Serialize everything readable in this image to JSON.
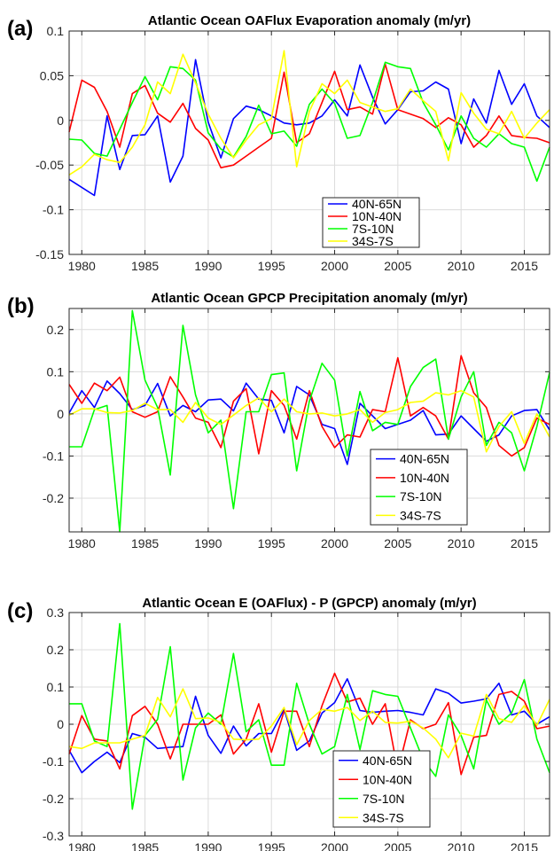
{
  "chart_data": [
    {
      "panel_label": "(a)",
      "type": "line",
      "title": "Atlantic Ocean OAFlux Evaporation anomaly (m/yr)",
      "xlim": [
        1979,
        2017
      ],
      "ylim": [
        -0.15,
        0.1
      ],
      "xticks": [
        1980,
        1985,
        1990,
        1995,
        2000,
        2005,
        2010,
        2015
      ],
      "yticks": [
        -0.15,
        -0.1,
        -0.05,
        0,
        0.05,
        0.1
      ],
      "ytick_labels": [
        "-0.15",
        "-0.1",
        "-0.05",
        "0",
        "0.05",
        "0.1"
      ],
      "grid": true,
      "legend_position": "bottom-center",
      "x": [
        1979,
        1980,
        1981,
        1982,
        1983,
        1984,
        1985,
        1986,
        1987,
        1988,
        1989,
        1990,
        1991,
        1992,
        1993,
        1994,
        1995,
        1996,
        1997,
        1998,
        1999,
        2000,
        2001,
        2002,
        2003,
        2004,
        2005,
        2006,
        2007,
        2008,
        2009,
        2010,
        2011,
        2012,
        2013,
        2014,
        2015,
        2016,
        2017
      ],
      "series": [
        {
          "name": "40N-65N",
          "color": "#0000ff",
          "values": [
            -0.066,
            -0.075,
            -0.084,
            0.005,
            -0.055,
            -0.017,
            -0.016,
            0.005,
            -0.069,
            -0.04,
            0.068,
            -0.002,
            -0.042,
            0.002,
            0.016,
            0.012,
            0.005,
            -0.003,
            -0.005,
            -0.003,
            0.005,
            0.023,
            0.005,
            0.062,
            0.026,
            -0.004,
            0.012,
            0.032,
            0.033,
            0.043,
            0.035,
            -0.026,
            0.024,
            -0.003,
            0.056,
            0.018,
            0.041,
            0.005,
            -0.008
          ]
        },
        {
          "name": "10N-40N",
          "color": "#ff0000",
          "values": [
            -0.013,
            0.045,
            0.037,
            0.01,
            -0.03,
            0.03,
            0.039,
            0.008,
            -0.002,
            0.019,
            -0.009,
            -0.022,
            -0.053,
            -0.05,
            -0.04,
            -0.03,
            -0.02,
            0.054,
            -0.025,
            -0.015,
            0.02,
            0.055,
            0.012,
            0.015,
            0.007,
            0.063,
            0.012,
            0.007,
            0.002,
            -0.008,
            0.003,
            -0.005,
            -0.03,
            -0.017,
            0.005,
            -0.017,
            -0.019,
            -0.02,
            -0.025
          ]
        },
        {
          "name": "7S-10N",
          "color": "#00ff00",
          "values": [
            -0.021,
            -0.022,
            -0.037,
            -0.04,
            -0.01,
            0.02,
            0.049,
            0.023,
            0.06,
            0.058,
            0.045,
            -0.014,
            -0.032,
            -0.041,
            -0.018,
            0.017,
            -0.015,
            -0.012,
            -0.029,
            0.018,
            0.035,
            0.019,
            -0.02,
            -0.017,
            0.02,
            0.065,
            0.06,
            0.058,
            0.02,
            -0.005,
            -0.033,
            0.005,
            -0.02,
            -0.03,
            -0.015,
            -0.026,
            -0.03,
            -0.068,
            -0.03
          ]
        },
        {
          "name": "34S-7S",
          "color": "#ffff00",
          "values": [
            -0.061,
            -0.052,
            -0.038,
            -0.044,
            -0.047,
            -0.03,
            -0.005,
            0.043,
            0.03,
            0.074,
            0.042,
            0.007,
            -0.02,
            -0.042,
            -0.022,
            -0.005,
            0.002,
            0.078,
            -0.052,
            0.01,
            0.041,
            0.03,
            0.045,
            0.02,
            0.015,
            0.01,
            0.013,
            0.035,
            0.022,
            0.01,
            -0.045,
            0.031,
            0.008,
            -0.01,
            -0.015,
            0.01,
            -0.02,
            -0.003,
            0.012
          ]
        }
      ]
    },
    {
      "panel_label": "(b)",
      "type": "line",
      "title": "Atlantic Ocean GPCP Precipitation anomaly (m/yr)",
      "xlim": [
        1979,
        2017
      ],
      "ylim": [
        -0.28,
        0.25
      ],
      "xticks": [
        1980,
        1985,
        1990,
        1995,
        2000,
        2005,
        2010,
        2015
      ],
      "yticks": [
        -0.2,
        -0.1,
        0,
        0.1,
        0.2
      ],
      "ytick_labels": [
        "-0.2",
        "-0.1",
        "0",
        "0.1",
        "0.2"
      ],
      "grid": true,
      "legend_position": "bottom-right",
      "x": [
        1979,
        1980,
        1981,
        1982,
        1983,
        1984,
        1985,
        1986,
        1987,
        1988,
        1989,
        1990,
        1991,
        1992,
        1993,
        1994,
        1995,
        1996,
        1997,
        1998,
        1999,
        2000,
        2001,
        2002,
        2003,
        2004,
        2005,
        2006,
        2007,
        2008,
        2009,
        2010,
        2011,
        2012,
        2013,
        2014,
        2015,
        2016,
        2017
      ],
      "series": [
        {
          "name": "40N-65N",
          "color": "#0000ff",
          "values": [
            0.002,
            0.055,
            0.015,
            0.078,
            0.048,
            0.01,
            0.02,
            0.072,
            -0.005,
            0.02,
            0.005,
            0.033,
            0.035,
            0.007,
            0.073,
            0.035,
            0.032,
            -0.045,
            0.065,
            0.045,
            -0.025,
            -0.035,
            -0.12,
            0.025,
            -0.005,
            -0.035,
            -0.025,
            -0.015,
            0.008,
            -0.05,
            -0.048,
            -0.005,
            -0.035,
            -0.065,
            -0.05,
            -0.005,
            0.008,
            0.01,
            -0.038
          ]
        },
        {
          "name": "10N-40N",
          "color": "#ff0000",
          "values": [
            0.07,
            0.025,
            0.073,
            0.055,
            0.087,
            0.005,
            -0.008,
            0.005,
            0.088,
            0.04,
            -0.01,
            -0.02,
            -0.08,
            0.03,
            0.06,
            -0.095,
            0.055,
            0.02,
            -0.06,
            0.055,
            -0.03,
            -0.08,
            -0.05,
            -0.055,
            0.01,
            0.005,
            0.133,
            -0.005,
            0.015,
            -0.005,
            -0.06,
            0.138,
            0.05,
            0.015,
            -0.075,
            -0.1,
            -0.08,
            -0.01,
            -0.025
          ]
        },
        {
          "name": "7S-10N",
          "color": "#00ff00",
          "values": [
            -0.078,
            -0.078,
            0.01,
            0.02,
            -0.28,
            0.245,
            0.08,
            0.015,
            -0.145,
            0.21,
            0.045,
            -0.045,
            -0.015,
            -0.225,
            0.005,
            0.005,
            0.093,
            0.097,
            -0.135,
            0.03,
            0.12,
            0.08,
            -0.1,
            0.053,
            -0.04,
            -0.02,
            -0.025,
            0.065,
            0.11,
            0.13,
            -0.06,
            0.04,
            0.1,
            -0.075,
            -0.02,
            -0.045,
            -0.135,
            -0.03,
            0.098
          ]
        },
        {
          "name": "34S-7S",
          "color": "#ffff00",
          "values": [
            -0.003,
            0.012,
            0.012,
            0.003,
            0.002,
            0.008,
            0.025,
            0.01,
            0.01,
            -0.02,
            0.027,
            -0.01,
            -0.025,
            -0.003,
            0.02,
            0.038,
            0.005,
            0.035,
            0.005,
            0.0,
            0.002,
            -0.005,
            0.0,
            0.01,
            -0.02,
            0.003,
            0.01,
            0.027,
            0.03,
            0.05,
            0.045,
            0.055,
            0.04,
            -0.09,
            -0.03,
            0.005,
            -0.07,
            0.0,
            -0.055
          ]
        }
      ]
    },
    {
      "panel_label": "(c)",
      "type": "line",
      "title": "Atlantic Ocean E (OAFlux) - P (GPCP) anomaly (m/yr)",
      "xlim": [
        1979,
        2017
      ],
      "ylim": [
        -0.3,
        0.3
      ],
      "xticks": [
        1980,
        1985,
        1990,
        1995,
        2000,
        2005,
        2010,
        2015
      ],
      "yticks": [
        -0.3,
        -0.2,
        -0.1,
        0,
        0.1,
        0.2,
        0.3
      ],
      "ytick_labels": [
        "-0.3",
        "-0.2",
        "-0.1",
        "0",
        "0.1",
        "0.2",
        "0.3"
      ],
      "grid": true,
      "legend_position": "bottom-center",
      "x": [
        1979,
        1980,
        1981,
        1982,
        1983,
        1984,
        1985,
        1986,
        1987,
        1988,
        1989,
        1990,
        1991,
        1992,
        1993,
        1994,
        1995,
        1996,
        1997,
        1998,
        1999,
        2000,
        2001,
        2002,
        2003,
        2004,
        2005,
        2006,
        2007,
        2008,
        2009,
        2010,
        2011,
        2012,
        2013,
        2014,
        2015,
        2016,
        2017
      ],
      "series": [
        {
          "name": "40N-65N",
          "color": "#0000ff",
          "values": [
            -0.07,
            -0.13,
            -0.1,
            -0.075,
            -0.103,
            -0.025,
            -0.035,
            -0.065,
            -0.062,
            -0.06,
            0.075,
            -0.03,
            -0.078,
            -0.005,
            -0.058,
            -0.025,
            -0.025,
            0.04,
            -0.07,
            -0.045,
            0.03,
            0.058,
            0.122,
            0.037,
            0.032,
            0.035,
            0.037,
            0.032,
            0.025,
            0.095,
            0.083,
            0.057,
            0.062,
            0.068,
            0.11,
            0.025,
            0.035,
            0.0,
            0.02
          ]
        },
        {
          "name": "10N-40N",
          "color": "#ff0000",
          "values": [
            -0.08,
            0.023,
            -0.04,
            -0.045,
            -0.12,
            0.023,
            0.048,
            0.0,
            -0.093,
            0.0,
            0.0,
            0.0,
            0.025,
            -0.08,
            -0.04,
            0.055,
            -0.075,
            0.035,
            0.035,
            -0.06,
            0.05,
            0.137,
            0.06,
            0.07,
            0.0,
            0.055,
            -0.125,
            0.012,
            -0.012,
            0.0,
            0.058,
            -0.135,
            -0.035,
            -0.03,
            0.08,
            0.088,
            0.062,
            -0.012,
            -0.005
          ]
        },
        {
          "name": "7S-10N",
          "color": "#00ff00",
          "values": [
            0.055,
            0.055,
            -0.045,
            -0.06,
            0.27,
            -0.228,
            -0.03,
            0.013,
            0.208,
            -0.15,
            -0.01,
            0.03,
            0.0,
            0.19,
            -0.02,
            0.012,
            -0.11,
            -0.11,
            0.11,
            0.0,
            -0.08,
            -0.06,
            0.08,
            -0.068,
            0.09,
            0.08,
            0.075,
            -0.01,
            -0.095,
            -0.14,
            0.025,
            -0.03,
            -0.12,
            0.065,
            0.0,
            0.03,
            0.12,
            -0.04,
            -0.13
          ]
        },
        {
          "name": "34S-7S",
          "color": "#ffff00",
          "values": [
            -0.06,
            -0.065,
            -0.05,
            -0.05,
            -0.05,
            -0.04,
            -0.03,
            0.072,
            0.02,
            0.095,
            0.015,
            0.017,
            0.005,
            -0.04,
            -0.042,
            -0.04,
            -0.005,
            0.045,
            -0.055,
            0.01,
            0.04,
            0.035,
            0.045,
            0.01,
            0.035,
            0.005,
            0.003,
            0.008,
            -0.01,
            -0.04,
            -0.09,
            -0.024,
            -0.032,
            0.08,
            0.015,
            0.005,
            0.05,
            -0.003,
            0.067
          ]
        }
      ]
    }
  ]
}
